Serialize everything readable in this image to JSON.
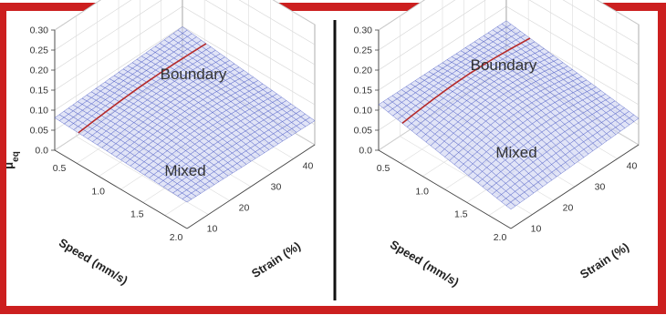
{
  "frame_color": "#cc1f1f",
  "surface_color": "#5866c8",
  "surface_fill": "#c8cdf0",
  "boundary_line_color": "#b52a2a",
  "divider_color": "#111111",
  "chart_data": [
    {
      "type": "surface",
      "zlabel_main": "μ",
      "zlabel_sub": "eq",
      "xlabel": "Speed (mm/s)",
      "ylabel": "Strain (%)",
      "z_ticks": [
        "0.0",
        "0.05",
        "0.10",
        "0.15",
        "0.20",
        "0.25",
        "0.30"
      ],
      "x_ticks": [
        "0.5",
        "1.0",
        "1.5",
        "2.0"
      ],
      "y_ticks": [
        "10",
        "20",
        "30",
        "40"
      ],
      "zlim": [
        0,
        0.3
      ],
      "xlim": [
        0.3,
        2.0
      ],
      "ylim": [
        5,
        45
      ],
      "regions": [
        {
          "label": "Boundary"
        },
        {
          "label": "Mixed"
        }
      ],
      "grid": true
    },
    {
      "type": "surface",
      "zlabel_main": "",
      "zlabel_sub": "",
      "xlabel": "Speed (mm/s)",
      "ylabel": "Strain (%)",
      "z_ticks": [
        "0.0",
        "0.05",
        "0.10",
        "0.15",
        "0.20",
        "0.25",
        "0.30"
      ],
      "x_ticks": [
        "0.5",
        "1.0",
        "1.5",
        "2.0"
      ],
      "y_ticks": [
        "10",
        "20",
        "30",
        "40"
      ],
      "zlim": [
        0,
        0.3
      ],
      "xlim": [
        0.3,
        2.0
      ],
      "ylim": [
        5,
        45
      ],
      "regions": [
        {
          "label": "Boundary"
        },
        {
          "label": "Mixed"
        }
      ],
      "grid": true
    }
  ]
}
